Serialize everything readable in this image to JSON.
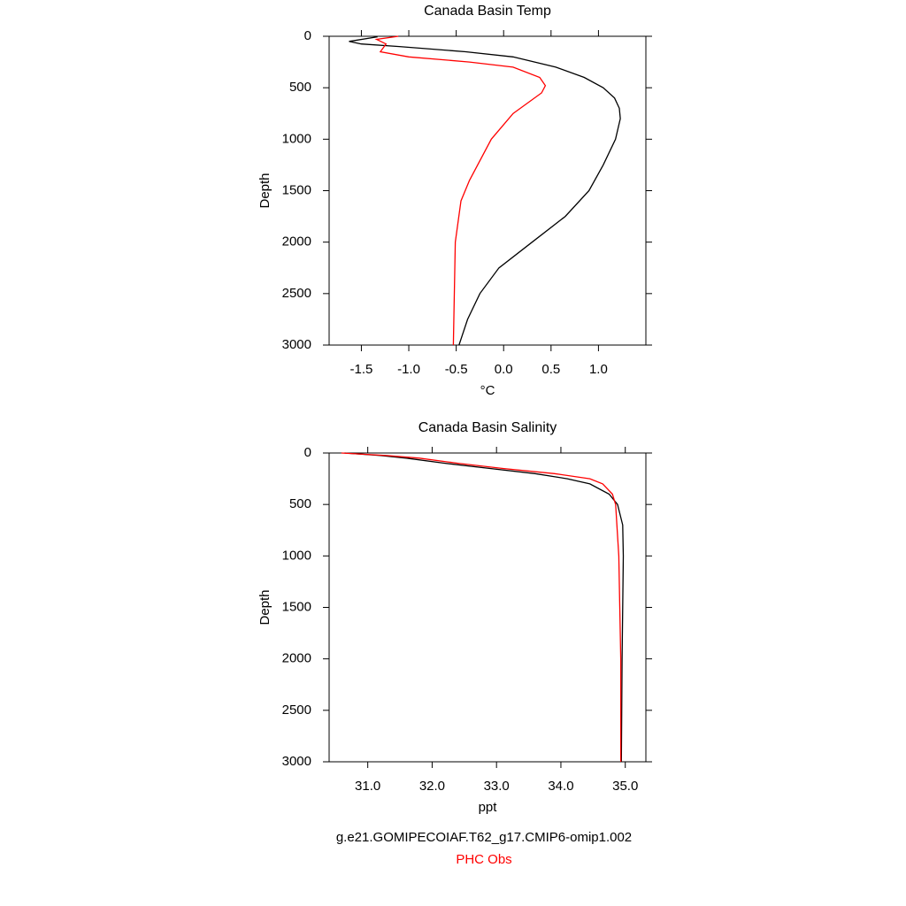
{
  "chart_data": [
    {
      "type": "line",
      "title": "Canada Basin Temp",
      "x_label": "°C",
      "y_label": "Depth",
      "xlim": [
        -1.84,
        1.5
      ],
      "xticks": [
        -1.5,
        {
          "value": -1.0,
          "label": "-1.0"
        },
        -0.5,
        {
          "value": 0.0,
          "label": "0.0"
        },
        0.5,
        {
          "value": 1.0,
          "label": "1.0"
        }
      ],
      "ylim": [
        0,
        3000
      ],
      "yticks": [
        0,
        500,
        1000,
        1500,
        2000,
        2500,
        3000
      ],
      "y_inverted": true,
      "series": [
        {
          "name": "g.e21.GOMIPECOIAF.T62_g17.CMIP6-omip1.002",
          "color": "#000000",
          "depth": [
            5,
            50,
            75,
            100,
            150,
            200,
            300,
            400,
            500,
            600,
            700,
            800,
            1000,
            1250,
            1500,
            1750,
            2000,
            2250,
            2500,
            2750,
            3000
          ],
          "values": [
            -1.33,
            -1.63,
            -1.5,
            -1.1,
            -0.4,
            0.1,
            0.55,
            0.85,
            1.05,
            1.17,
            1.22,
            1.23,
            1.18,
            1.05,
            0.9,
            0.65,
            0.3,
            -0.05,
            -0.25,
            -0.38,
            -0.47
          ]
        },
        {
          "name": "PHC Obs",
          "color": "#ff0000",
          "depth": [
            0,
            30,
            75,
            150,
            200,
            250,
            300,
            400,
            480,
            550,
            750,
            1000,
            1400,
            1600,
            2000,
            3000
          ],
          "values": [
            -1.11,
            -1.34,
            -1.24,
            -1.3,
            -1.0,
            -0.36,
            0.1,
            0.38,
            0.44,
            0.4,
            0.1,
            -0.13,
            -0.36,
            -0.45,
            -0.51,
            -0.53
          ]
        }
      ]
    },
    {
      "type": "line",
      "title": "Canada Basin Salinity",
      "x_label": "ppt",
      "y_label": "Depth",
      "xlim": [
        30.4,
        35.32
      ],
      "xticks": [
        {
          "value": 31,
          "label": "31.0"
        },
        {
          "value": 32,
          "label": "32.0"
        },
        {
          "value": 33,
          "label": "33.0"
        },
        {
          "value": 34,
          "label": "34.0"
        },
        {
          "value": 35,
          "label": "35.0"
        }
      ],
      "ylim": [
        0,
        3000
      ],
      "yticks": [
        0,
        500,
        1000,
        1500,
        2000,
        2500,
        3000
      ],
      "y_inverted": true,
      "series": [
        {
          "color": "#000000",
          "depth": [
            0,
            25,
            50,
            100,
            150,
            200,
            250,
            300,
            400,
            500,
            700,
            1000,
            2000,
            3000
          ],
          "values": [
            30.64,
            31.2,
            31.6,
            32.2,
            32.9,
            33.6,
            34.1,
            34.45,
            34.75,
            34.88,
            34.96,
            34.97,
            34.95,
            34.94
          ]
        },
        {
          "color": "#ff0000",
          "depth": [
            0,
            25,
            50,
            100,
            150,
            200,
            250,
            300,
            400,
            500,
            1000,
            2000,
            3000
          ],
          "values": [
            30.59,
            31.3,
            31.8,
            32.4,
            33.1,
            33.9,
            34.45,
            34.65,
            34.8,
            34.85,
            34.9,
            34.93,
            34.93
          ]
        }
      ]
    }
  ]
}
